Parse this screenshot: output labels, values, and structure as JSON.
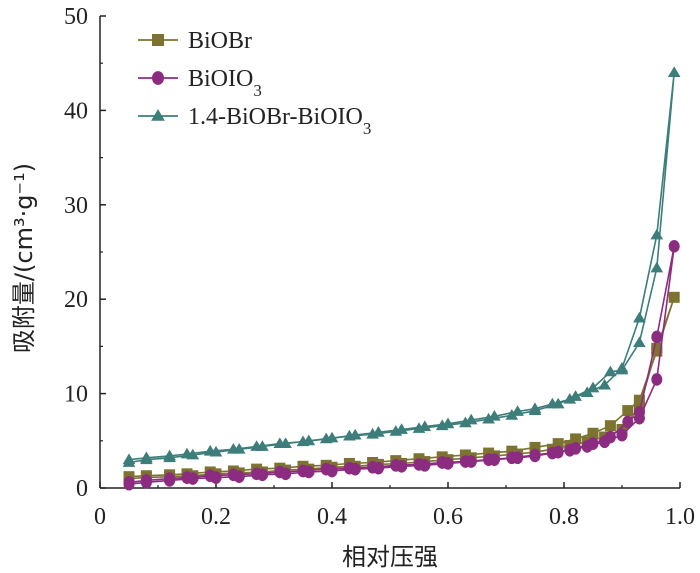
{
  "chart_data": {
    "type": "line",
    "title": "",
    "xlabel": "相对压强",
    "ylabel": "吸附量/(cm³·g⁻¹)",
    "xlim": [
      0,
      1.0
    ],
    "ylim": [
      0,
      50
    ],
    "xticks": [
      "0",
      "0.2",
      "0.4",
      "0.6",
      "0.8",
      "1.0"
    ],
    "yticks": [
      "0",
      "10",
      "20",
      "30",
      "40",
      "50"
    ],
    "legend_position": "top-left",
    "series": [
      {
        "name": "BiOBr",
        "legend_parts": [
          {
            "text": "BiOBr",
            "sub": ""
          }
        ],
        "color": "#7d7330",
        "marker": "square",
        "x": [
          0.05,
          0.08,
          0.12,
          0.15,
          0.19,
          0.23,
          0.27,
          0.31,
          0.35,
          0.39,
          0.43,
          0.47,
          0.51,
          0.55,
          0.59,
          0.63,
          0.67,
          0.71,
          0.75,
          0.79,
          0.82,
          0.85,
          0.88,
          0.91,
          0.93,
          0.96,
          0.99,
          0.96,
          0.93,
          0.9,
          0.87,
          0.84,
          0.81,
          0.78,
          0.75,
          0.72,
          0.68,
          0.64,
          0.6,
          0.56,
          0.52,
          0.48,
          0.44,
          0.4,
          0.36,
          0.32,
          0.28,
          0.24,
          0.2,
          0.16,
          0.12,
          0.08,
          0.05
        ],
        "y": [
          1.2,
          1.3,
          1.4,
          1.5,
          1.7,
          1.8,
          2.0,
          2.1,
          2.3,
          2.4,
          2.6,
          2.7,
          2.9,
          3.1,
          3.3,
          3.5,
          3.7,
          3.9,
          4.3,
          4.7,
          5.2,
          5.8,
          6.6,
          8.2,
          9.3,
          14.5,
          20.2,
          14.8,
          8.6,
          6.2,
          5.4,
          4.9,
          4.5,
          4.1,
          3.8,
          3.6,
          3.4,
          3.2,
          3.0,
          2.8,
          2.6,
          2.5,
          2.3,
          2.2,
          2.0,
          1.9,
          1.7,
          1.6,
          1.5,
          1.3,
          1.2,
          1.1,
          1.0
        ]
      },
      {
        "name": "BiOIO3",
        "legend_parts": [
          {
            "text": "BiOIO",
            "sub": "3"
          }
        ],
        "color": "#8c2c80",
        "marker": "circle",
        "x": [
          0.05,
          0.08,
          0.12,
          0.15,
          0.19,
          0.23,
          0.27,
          0.31,
          0.35,
          0.39,
          0.43,
          0.47,
          0.51,
          0.55,
          0.59,
          0.63,
          0.67,
          0.71,
          0.75,
          0.79,
          0.82,
          0.85,
          0.88,
          0.91,
          0.93,
          0.96,
          0.99,
          0.96,
          0.93,
          0.9,
          0.87,
          0.84,
          0.81,
          0.78,
          0.75,
          0.72,
          0.68,
          0.64,
          0.6,
          0.56,
          0.52,
          0.48,
          0.44,
          0.4,
          0.36,
          0.32,
          0.28,
          0.24,
          0.2,
          0.16,
          0.12,
          0.08,
          0.05
        ],
        "y": [
          0.6,
          0.8,
          1.0,
          1.1,
          1.3,
          1.4,
          1.5,
          1.7,
          1.8,
          2.0,
          2.1,
          2.2,
          2.4,
          2.5,
          2.7,
          2.8,
          3.0,
          3.2,
          3.5,
          3.8,
          4.2,
          4.7,
          5.4,
          7.0,
          8.0,
          16.0,
          25.6,
          11.5,
          7.4,
          5.6,
          4.9,
          4.4,
          4.0,
          3.7,
          3.4,
          3.2,
          3.0,
          2.8,
          2.6,
          2.4,
          2.3,
          2.1,
          2.0,
          1.8,
          1.7,
          1.5,
          1.4,
          1.2,
          1.1,
          1.0,
          0.8,
          0.6,
          0.4
        ]
      },
      {
        "name": "1.4-BiOBr-BiOIO3",
        "legend_parts": [
          {
            "text": "1.4-BiOBr-BiOIO",
            "sub": "3"
          }
        ],
        "color": "#3d7d7a",
        "marker": "triangle",
        "x": [
          0.05,
          0.08,
          0.12,
          0.15,
          0.19,
          0.23,
          0.27,
          0.31,
          0.35,
          0.39,
          0.43,
          0.47,
          0.51,
          0.55,
          0.59,
          0.63,
          0.67,
          0.71,
          0.75,
          0.79,
          0.82,
          0.85,
          0.88,
          0.9,
          0.93,
          0.96,
          0.99,
          0.96,
          0.93,
          0.9,
          0.87,
          0.84,
          0.81,
          0.78,
          0.75,
          0.72,
          0.68,
          0.64,
          0.6,
          0.56,
          0.52,
          0.48,
          0.44,
          0.4,
          0.36,
          0.32,
          0.28,
          0.24,
          0.2,
          0.16,
          0.12,
          0.08,
          0.05
        ],
        "y": [
          3.0,
          3.2,
          3.4,
          3.6,
          3.9,
          4.1,
          4.4,
          4.7,
          4.9,
          5.2,
          5.5,
          5.7,
          6.0,
          6.3,
          6.6,
          6.9,
          7.3,
          7.7,
          8.2,
          8.9,
          9.7,
          10.6,
          12.3,
          12.5,
          15.4,
          23.3,
          44.0,
          26.8,
          18.0,
          12.7,
          10.9,
          10.1,
          9.4,
          8.9,
          8.4,
          8.1,
          7.6,
          7.2,
          6.8,
          6.5,
          6.2,
          5.9,
          5.6,
          5.3,
          5.0,
          4.7,
          4.4,
          4.1,
          3.8,
          3.5,
          3.2,
          3.0,
          2.7
        ]
      }
    ]
  }
}
